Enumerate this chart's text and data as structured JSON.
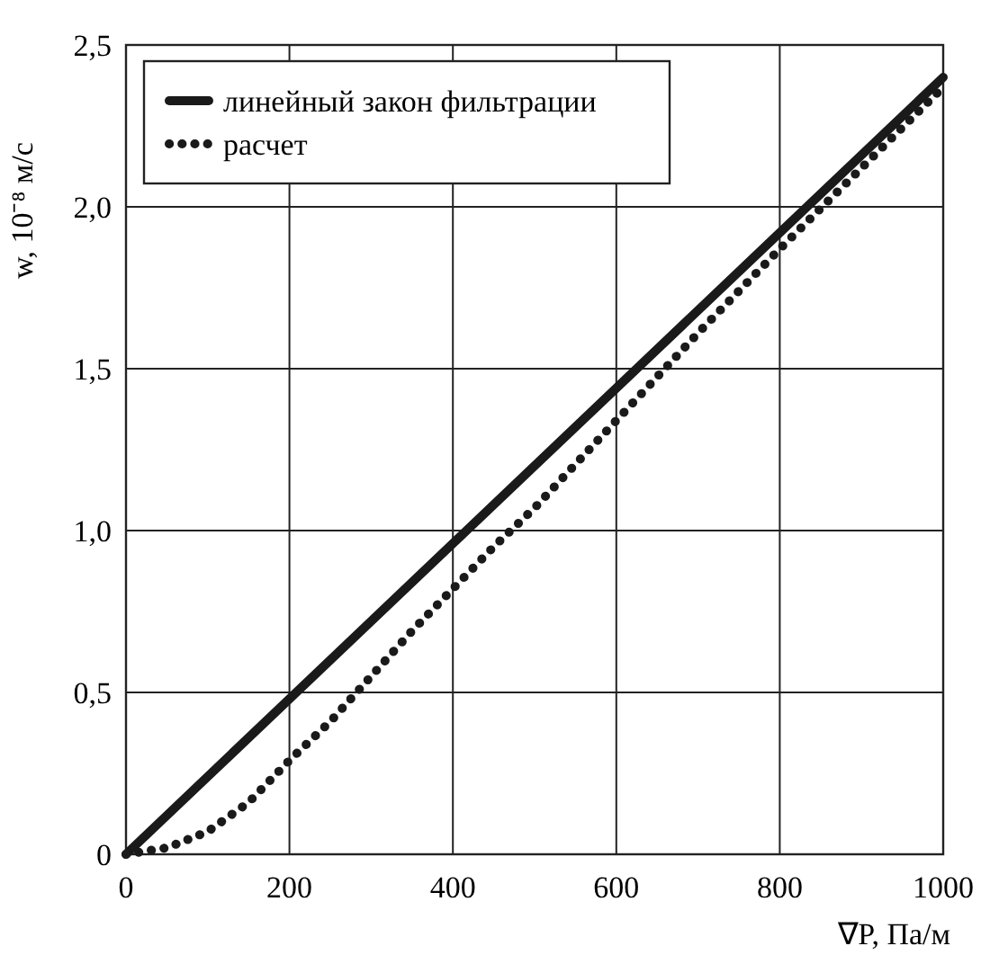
{
  "chart_data": {
    "type": "line",
    "xlabel": "∇P, Па/м",
    "ylabel": "w, 10⁻⁸ м/с",
    "xlim": [
      0,
      1000
    ],
    "ylim": [
      0,
      2.5
    ],
    "xticks": [
      0,
      200,
      400,
      600,
      800,
      1000
    ],
    "yticks": [
      {
        "value": 0,
        "label": "0"
      },
      {
        "value": 0.5,
        "label": "0,5"
      },
      {
        "value": 1,
        "label": "1,0"
      },
      {
        "value": 1.5,
        "label": "1,5"
      },
      {
        "value": 2,
        "label": "2,0"
      },
      {
        "value": 2.5,
        "label": "2,5"
      }
    ],
    "grid": true,
    "legend": "top left",
    "series": [
      {
        "name": "линейный закон фильтрации",
        "color": "#1a1a1a",
        "line_style": "solid",
        "x": [
          0,
          1000
        ],
        "values": [
          0,
          2.4
        ]
      },
      {
        "name": "расчет",
        "color": "#1a1a1a",
        "line_style": "dotted",
        "x": [
          0,
          50,
          100,
          150,
          200,
          250,
          300,
          350,
          400,
          450,
          500,
          600,
          700,
          800,
          900,
          1000
        ],
        "values": [
          0,
          0.02,
          0.07,
          0.16,
          0.29,
          0.41,
          0.55,
          0.69,
          0.82,
          0.95,
          1.07,
          1.34,
          1.61,
          1.87,
          2.12,
          2.37
        ]
      }
    ]
  }
}
